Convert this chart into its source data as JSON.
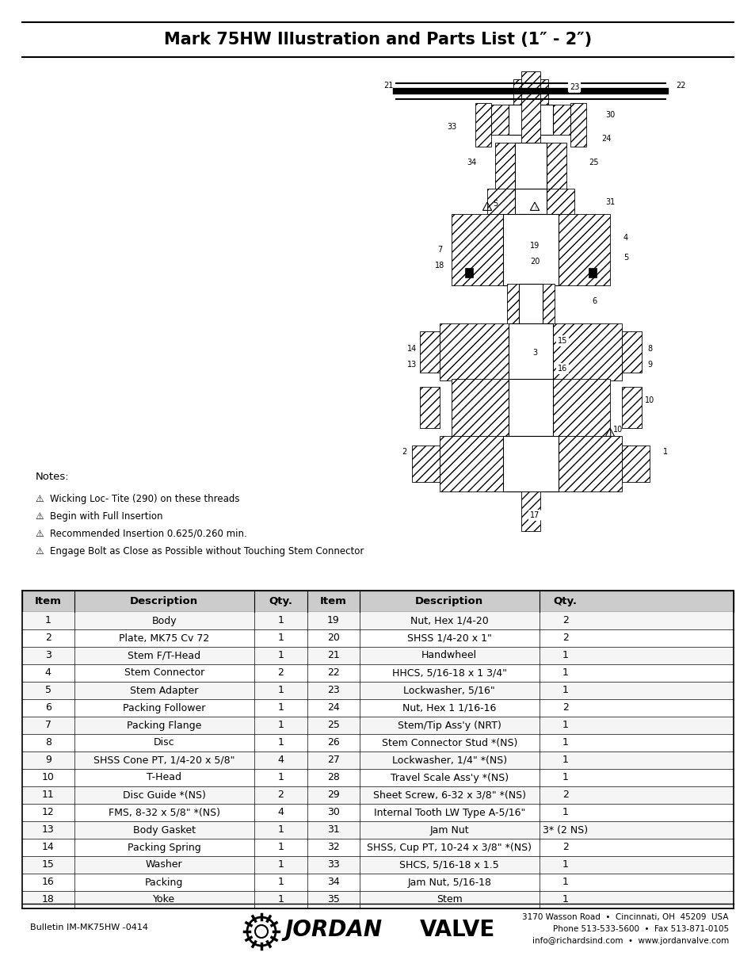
{
  "title": "Mark 75HW Illustration and Parts List (1″ - 2″)",
  "notes_header": "Notes:",
  "notes": [
    "⚠  Wicking Loc- Tite (290) on these threads",
    "⚠  Begin with Full Insertion",
    "⚠  Recommended Insertion 0.625/0.260 min.",
    "⚠  Engage Bolt as Close as Possible without Touching Stem Connector"
  ],
  "table_headers": [
    "Item",
    "Description",
    "Qty.",
    "Item",
    "Description",
    "Qty."
  ],
  "table_data": [
    [
      "1",
      "Body",
      "1",
      "19",
      "Nut, Hex 1/4-20",
      "2"
    ],
    [
      "2",
      "Plate, MK75 Cv 72",
      "1",
      "20",
      "SHSS 1/4-20 x 1\"",
      "2"
    ],
    [
      "3",
      "Stem F/T-Head",
      "1",
      "21",
      "Handwheel",
      "1"
    ],
    [
      "4",
      "Stem Connector",
      "2",
      "22",
      "HHCS, 5/16-18 x 1 3/4\"",
      "1"
    ],
    [
      "5",
      "Stem Adapter",
      "1",
      "23",
      "Lockwasher, 5/16\"",
      "1"
    ],
    [
      "6",
      "Packing Follower",
      "1",
      "24",
      "Nut, Hex 1 1/16-16",
      "2"
    ],
    [
      "7",
      "Packing Flange",
      "1",
      "25",
      "Stem/Tip Ass'y (NRT)",
      "1"
    ],
    [
      "8",
      "Disc",
      "1",
      "26",
      "Stem Connector Stud *(NS)",
      "1"
    ],
    [
      "9",
      "SHSS Cone PT, 1/4-20 x 5/8\"",
      "4",
      "27",
      "Lockwasher, 1/4\" *(NS)",
      "1"
    ],
    [
      "10",
      "T-Head",
      "1",
      "28",
      "Travel Scale Ass'y *(NS)",
      "1"
    ],
    [
      "11",
      "Disc Guide *(NS)",
      "2",
      "29",
      "Sheet Screw, 6-32 x 3/8\" *(NS)",
      "2"
    ],
    [
      "12",
      "FMS, 8-32 x 5/8\" *(NS)",
      "4",
      "30",
      "Internal Tooth LW Type A-5/16\"",
      "1"
    ],
    [
      "13",
      "Body Gasket",
      "1",
      "31",
      "Jam Nut",
      "3* (2 NS)"
    ],
    [
      "14",
      "Packing Spring",
      "1",
      "32",
      "SHSS, Cup PT, 10-24 x 3/8\" *(NS)",
      "2"
    ],
    [
      "15",
      "Washer",
      "1",
      "33",
      "SHCS, 5/16-18 x 1.5",
      "1"
    ],
    [
      "16",
      "Packing",
      "1",
      "34",
      "Jam Nut, 5/16-18",
      "1"
    ],
    [
      "18",
      "Yoke",
      "1",
      "35",
      "Stem",
      "1"
    ]
  ],
  "footer_left": "Bulletin IM-MK75HW -0414",
  "footer_addr1": "3170 Wasson Road  •  Cincinnati, OH  45209  USA",
  "footer_addr2": "Phone 513-533-5600  •  Fax 513-871-0105",
  "footer_addr3": "info@richardsind.com  •  www.jordanvalve.com",
  "bg_color": "#ffffff",
  "font_color": "#000000"
}
